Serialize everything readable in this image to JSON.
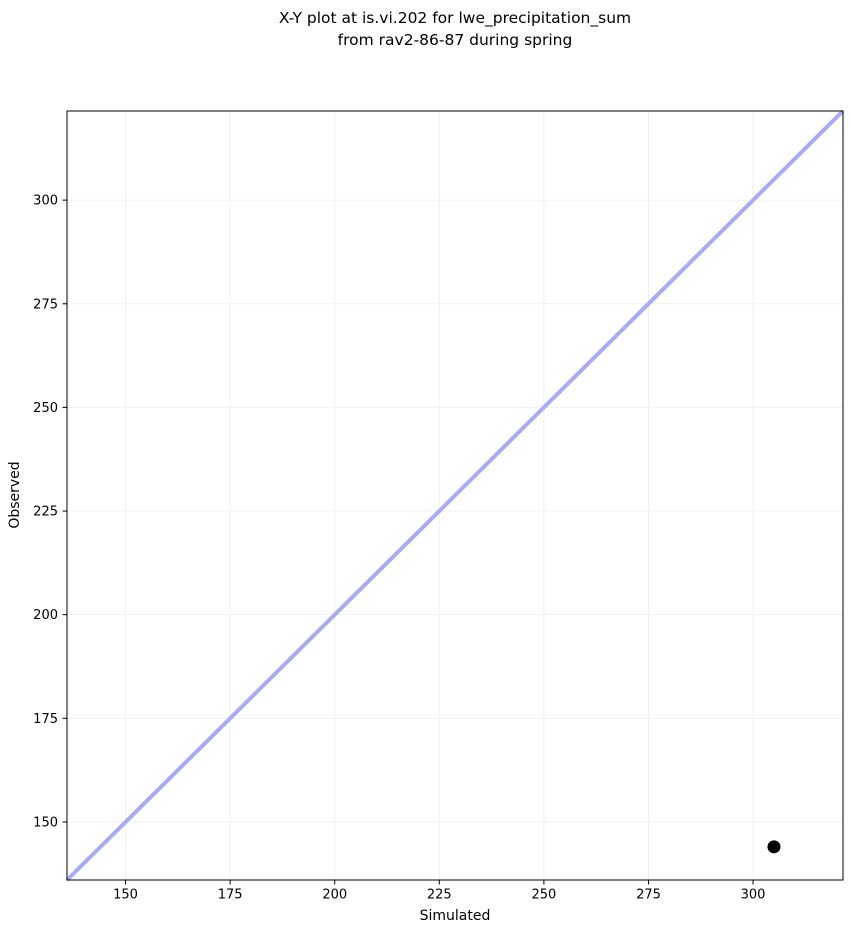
{
  "figure": {
    "title": "X-Y plot at is.vi.202 for lwe_precipitation_sum\nfrom rav2-86-87 during spring"
  },
  "chart_data": {
    "type": "scatter",
    "title": "X-Y plot at is.vi.202 for lwe_precipitation_sum from rav2-86-87 during spring",
    "xlabel": "Simulated",
    "ylabel": "Observed",
    "xlim": [
      136,
      321.5
    ],
    "ylim": [
      136,
      321.5
    ],
    "xticks": [
      150,
      175,
      200,
      225,
      250,
      275,
      300
    ],
    "yticks": [
      150,
      175,
      200,
      225,
      250,
      275,
      300
    ],
    "grid": true,
    "legend": "none",
    "points": [
      {
        "x": 305,
        "y": 144
      }
    ],
    "point_color": "#000000",
    "point_radius": 6.5,
    "identity_line": {
      "show": true,
      "description": "1:1 reference line y = x, corner to corner",
      "color": "#aaaaf3",
      "width": 4
    },
    "gridline_color": "#f0f0f0",
    "spine_color": "#000000",
    "background_color": "#ffffff"
  }
}
